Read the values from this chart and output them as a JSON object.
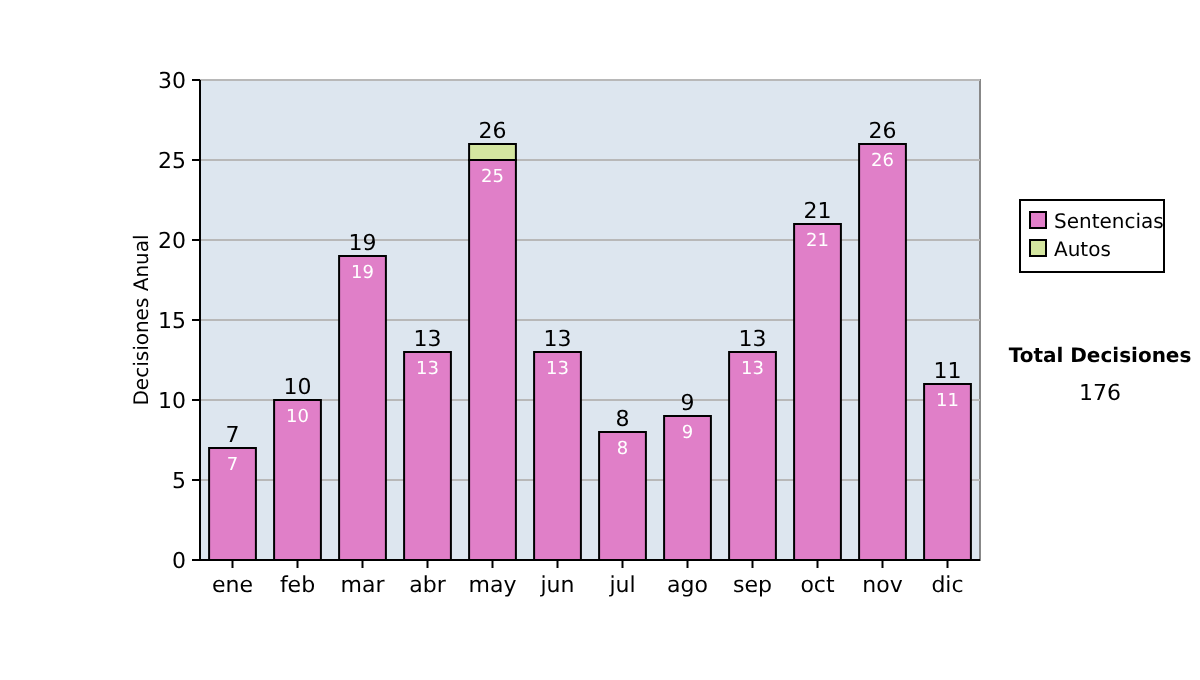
{
  "chart_data": {
    "type": "bar",
    "stacked": true,
    "ylabel": "Decisiones Anual",
    "categories": [
      "ene",
      "feb",
      "mar",
      "abr",
      "may",
      "jun",
      "jul",
      "ago",
      "sep",
      "oct",
      "nov",
      "dic"
    ],
    "series": [
      {
        "name": "Sentencias",
        "color": "#e07fc8",
        "values": [
          7,
          10,
          19,
          13,
          25,
          13,
          8,
          9,
          13,
          21,
          26,
          11
        ],
        "value_labels": [
          "7",
          "10",
          "19",
          "13",
          "25",
          "13",
          "8",
          "9",
          "13",
          "21",
          "26",
          "11"
        ]
      },
      {
        "name": "Autos",
        "color": "#d4e6a0",
        "values": [
          0,
          0,
          0,
          0,
          1,
          0,
          0,
          0,
          0,
          0,
          0,
          0
        ]
      }
    ],
    "totals": [
      "7",
      "10",
      "19",
      "13",
      "26",
      "13",
      "8",
      "9",
      "13",
      "21",
      "26",
      "11"
    ],
    "ylim": [
      0,
      30
    ],
    "yticks": [
      0,
      5,
      10,
      15,
      20,
      25,
      30
    ],
    "grid": "y",
    "legend": "right",
    "annotations": [
      "Total Decisiones",
      "176"
    ]
  }
}
